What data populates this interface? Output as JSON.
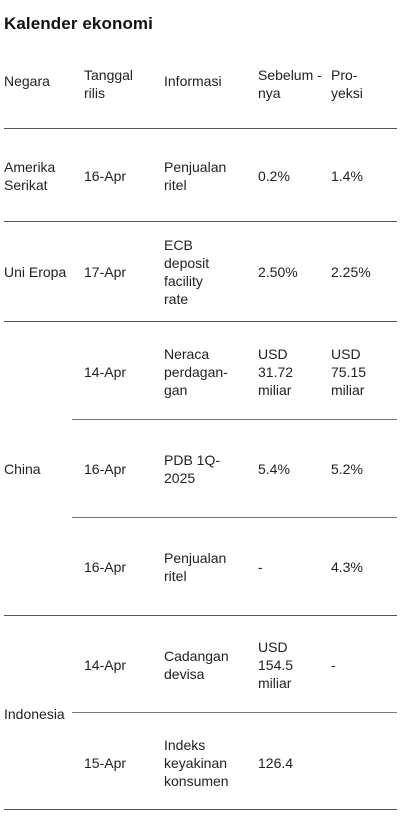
{
  "title": "Kalender ekonomi",
  "headers": {
    "negara": "Negara",
    "tanggal": "Tanggal rilis",
    "informasi": "Informasi",
    "sebelumnya": "Sebelum -nya",
    "proyeksi": "Pro- yeksi"
  },
  "rows": [
    {
      "country": "Amerika Serikat",
      "date": "16-Apr",
      "info": "Penjualan ritel",
      "prev": "0.2%",
      "proj": "1.4%"
    },
    {
      "country": "Uni Eropa",
      "date": "17-Apr",
      "info": "ECB deposit facility rate",
      "prev": "2.50%",
      "proj": "2.25%"
    },
    {
      "country": "China",
      "date": "14-Apr",
      "info": "Neraca perdagan- gan",
      "prev": "USD 31.72 miliar",
      "proj": "USD 75.15 miliar"
    },
    {
      "country": "",
      "date": "16-Apr",
      "info": "PDB 1Q- 2025",
      "prev": "5.4%",
      "proj": "5.2%"
    },
    {
      "country": "",
      "date": "16-Apr",
      "info": "Penjualan ritel",
      "prev": "-",
      "proj": "4.3%"
    },
    {
      "country": "Indonesia",
      "date": "14-Apr",
      "info": "Cadangan devisa",
      "prev": "USD 154.5 miliar",
      "proj": "-"
    },
    {
      "country": "",
      "date": "15-Apr",
      "info": "Indeks keyakinan konsumen",
      "prev": "126.4",
      "proj": ""
    }
  ]
}
